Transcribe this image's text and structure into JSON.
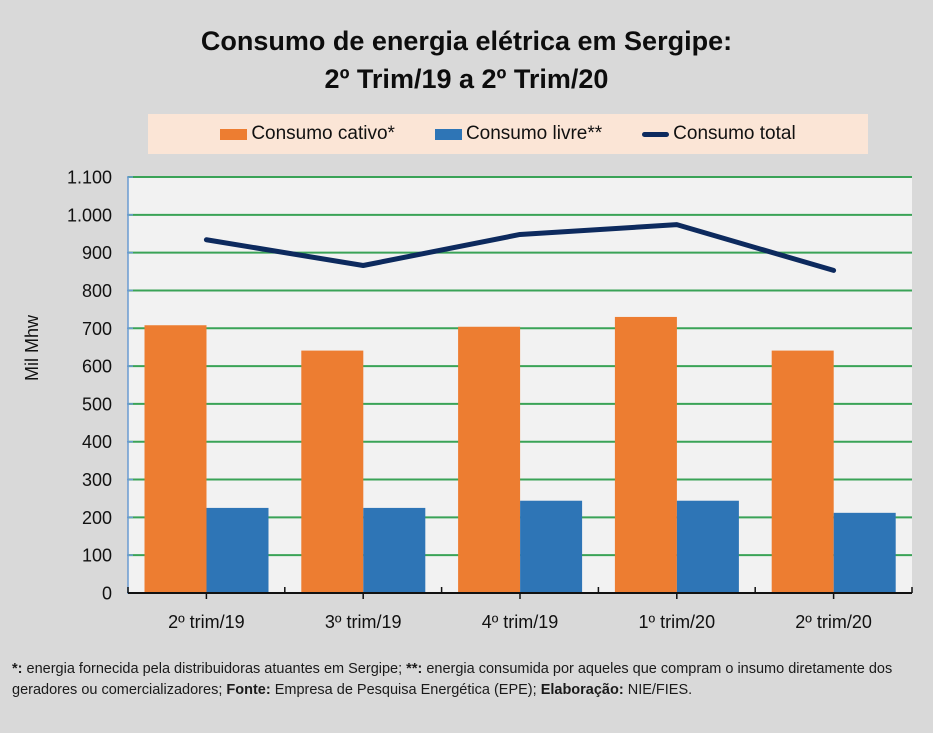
{
  "colors": {
    "background": "#d9d9d9",
    "plot_background": "#f2f2f2",
    "gridline": "#3aa357",
    "y_axis": "#6a9bd1",
    "x_axis": "#111111",
    "cativo": "#ed7d31",
    "livre": "#2e75b6",
    "total": "#0d2a5e",
    "legend_background": "#fbe5d6"
  },
  "chart_data": {
    "type": "bar",
    "title": "Consumo de energia elétrica em Sergipe:",
    "subtitle": "2º Trim/19 a 2º Trim/20",
    "xlabel": "",
    "ylabel": "Mil Mhw",
    "ylim": [
      0,
      1100
    ],
    "yticks": [
      0,
      100,
      200,
      300,
      400,
      500,
      600,
      700,
      800,
      900,
      1000,
      1100
    ],
    "ytick_labels": [
      "0",
      "100",
      "200",
      "300",
      "400",
      "500",
      "600",
      "700",
      "800",
      "900",
      "1.000",
      "1.100"
    ],
    "grid": true,
    "legend_position": "top",
    "categories": [
      "2º trim/19",
      "3º trim/19",
      "4º trim/19",
      "1º trim/20",
      "2º trim/20"
    ],
    "series": [
      {
        "name": "Consumo cativo*",
        "type": "bar",
        "color_key": "cativo",
        "values": [
          708,
          641,
          704,
          730,
          641
        ]
      },
      {
        "name": "Consumo livre**",
        "type": "bar",
        "color_key": "livre",
        "values": [
          225,
          225,
          244,
          244,
          212
        ]
      },
      {
        "name": "Consumo total",
        "type": "line",
        "color_key": "total",
        "values": [
          934,
          866,
          948,
          974,
          853
        ]
      }
    ]
  },
  "footnote": {
    "parts": [
      {
        "text": "*:",
        "bold": true
      },
      {
        "text": " energia fornecida pela distribuidoras atuantes em Sergipe; ",
        "bold": false
      },
      {
        "text": "**:",
        "bold": true
      },
      {
        "text": " energia consumida por aqueles que compram o insumo diretamente  dos geradores ou comercializadores; ",
        "bold": false
      },
      {
        "text": "Fonte:",
        "bold": true
      },
      {
        "text": " Empresa de Pesquisa Energética (EPE); ",
        "bold": false
      },
      {
        "text": "Elaboração:",
        "bold": true
      },
      {
        "text": " NIE/FIES.",
        "bold": false
      }
    ]
  }
}
